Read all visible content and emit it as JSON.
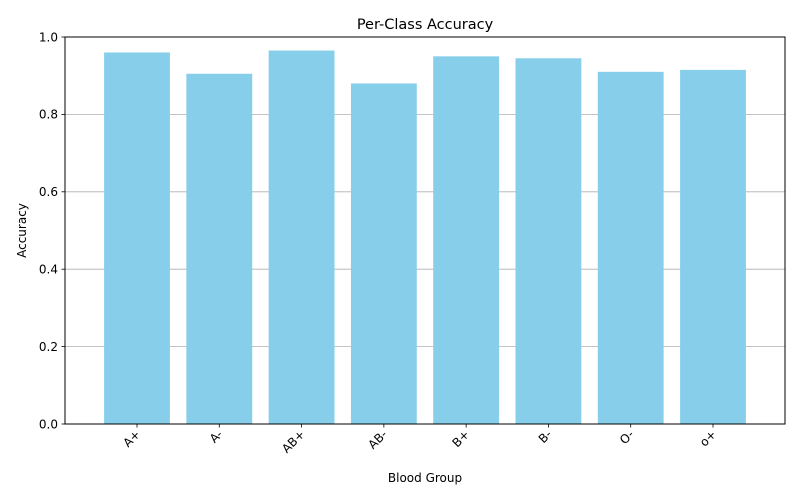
{
  "chart_data": {
    "type": "bar",
    "title": "Per-Class Accuracy",
    "xlabel": "Blood Group",
    "ylabel": "Accuracy",
    "categories": [
      "A+",
      "A-",
      "AB+",
      "AB-",
      "B+",
      "B-",
      "O-",
      "o+"
    ],
    "values": [
      0.96,
      0.905,
      0.965,
      0.88,
      0.95,
      0.945,
      0.91,
      0.915
    ],
    "ylim": [
      0,
      1.0
    ],
    "yticks": [
      "0.0",
      "0.2",
      "0.4",
      "0.6",
      "0.8",
      "1.0"
    ],
    "grid": "y-major",
    "bar_color": "#87CEEB",
    "grid_color": "#b0b0b0"
  }
}
